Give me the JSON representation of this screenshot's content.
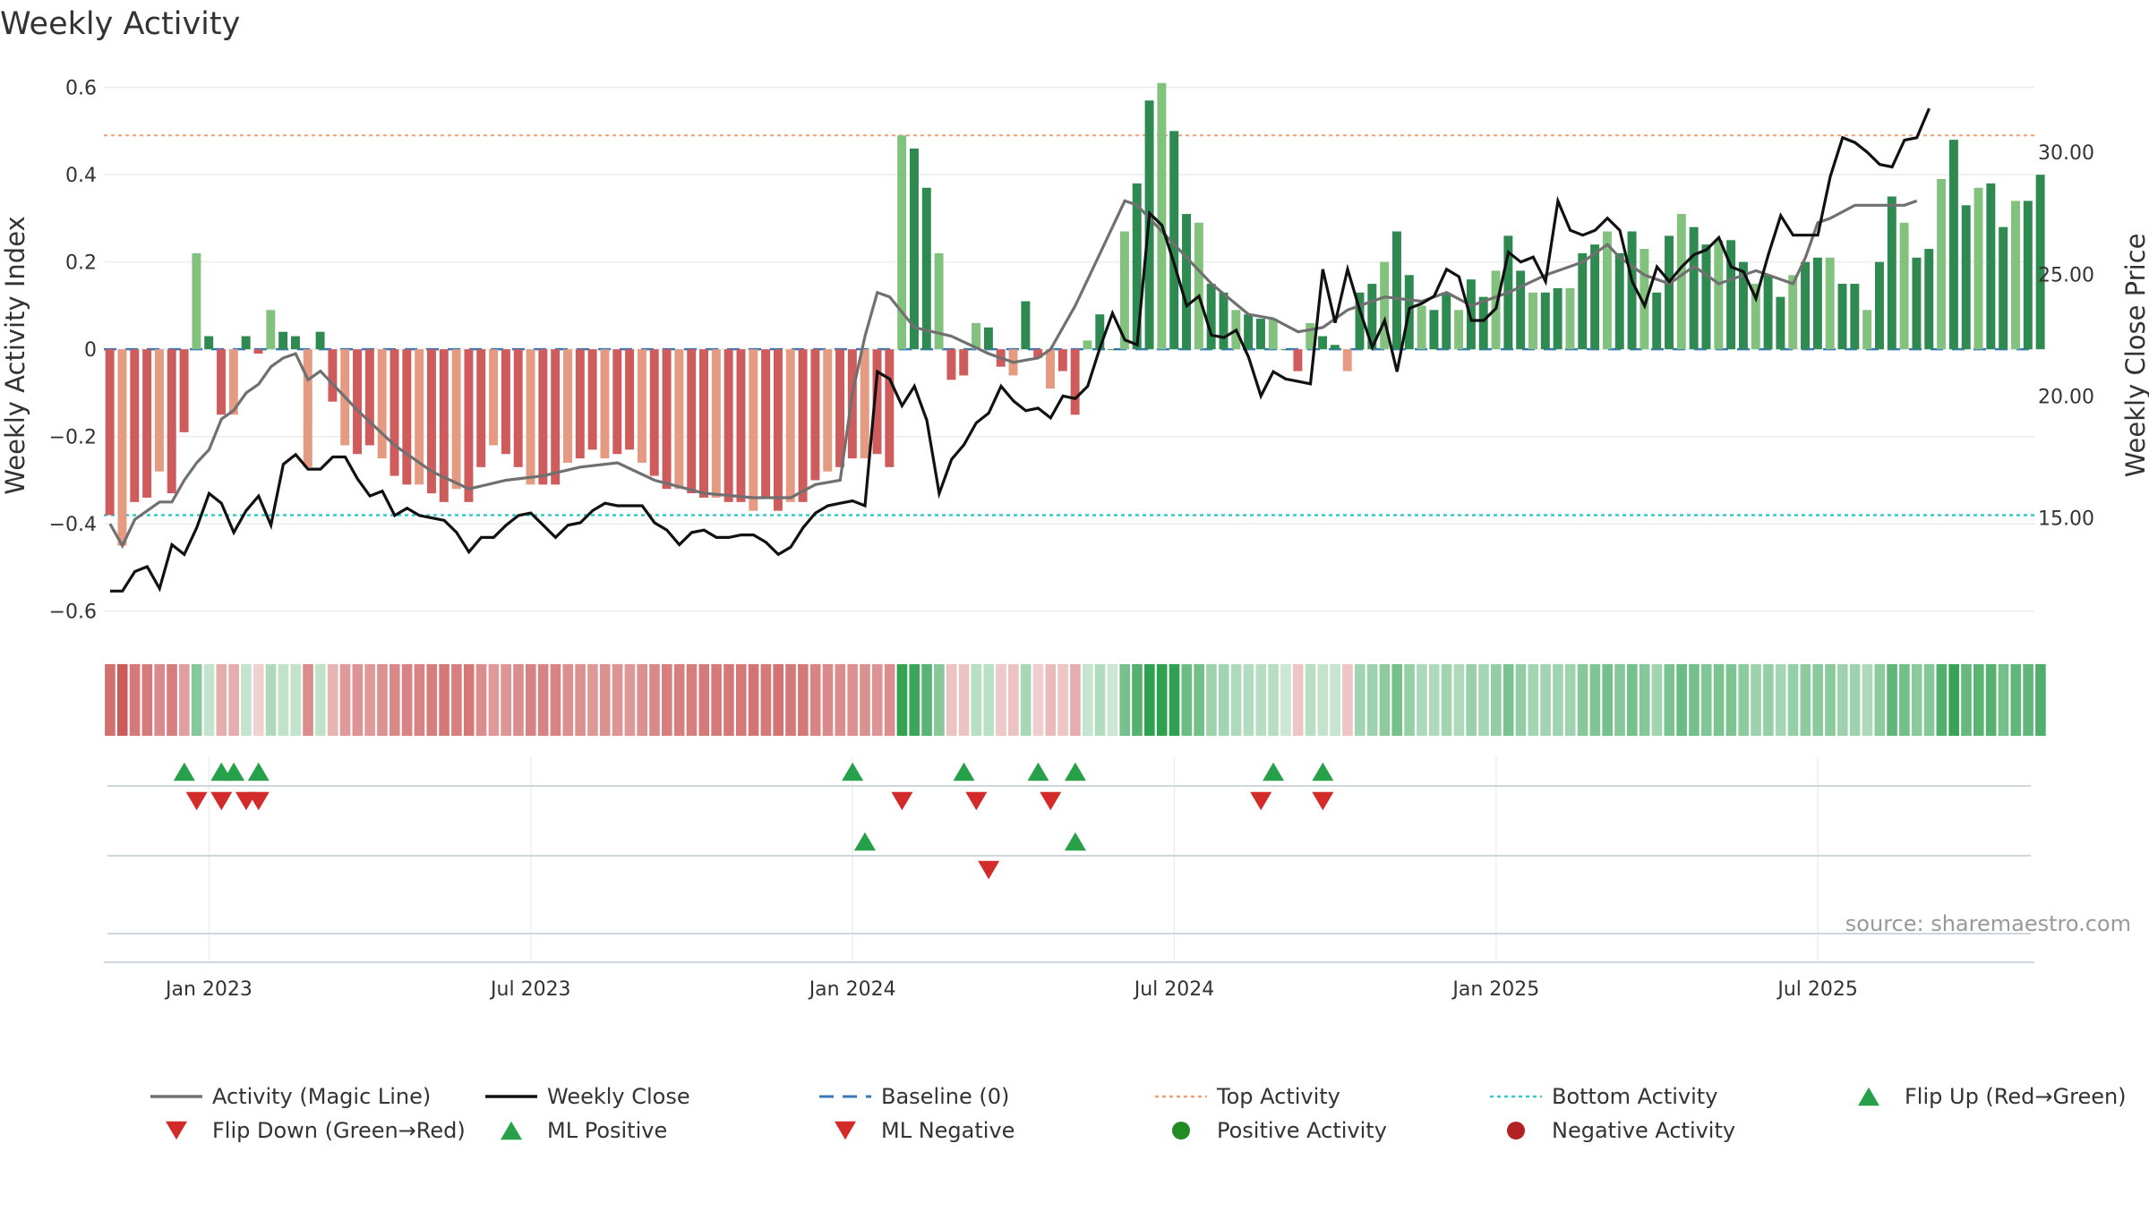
{
  "chart_data": {
    "type": "bar",
    "title": "Weekly Activity",
    "ylabel_left": "Weekly Activity Index",
    "ylabel_right": "Weekly Close Price",
    "source": "source: sharemaestro.com",
    "left_axis": {
      "ylim": [
        -0.66,
        0.63
      ],
      "ticks": [
        -0.6,
        -0.4,
        -0.2,
        0,
        0.2,
        0.4,
        0.6
      ],
      "tick_labels": [
        "−0.6",
        "−0.4",
        "−0.2",
        "0",
        "0.2",
        "0.4",
        "0.6"
      ]
    },
    "right_axis": {
      "ylim": [
        10.1,
        33.2
      ],
      "ticks": [
        15,
        20,
        25,
        30
      ],
      "tick_labels": [
        "15.00",
        "20.00",
        "25.00",
        "30.00"
      ]
    },
    "x_axis": {
      "start_week": -8,
      "end_week": 148,
      "ticks": [
        {
          "label": "Jan 2023",
          "week": 0
        },
        {
          "label": "Jul 2023",
          "week": 26
        },
        {
          "label": "Jan 2024",
          "week": 52
        },
        {
          "label": "Jul 2024",
          "week": 78
        },
        {
          "label": "Jan 2025",
          "week": 104
        },
        {
          "label": "Jul 2025",
          "week": 130
        }
      ]
    },
    "reference_lines": {
      "baseline": 0,
      "top_activity": 0.49,
      "bottom_activity": -0.38
    },
    "series": [
      {
        "name": "Weekly Activity",
        "kind": "bar",
        "start_week": -8,
        "values": [
          -0.38,
          -0.45,
          -0.35,
          -0.34,
          -0.28,
          -0.33,
          -0.19,
          0.22,
          0.03,
          -0.15,
          -0.15,
          0.03,
          -0.01,
          0.09,
          0.04,
          0.03,
          -0.27,
          0.04,
          -0.12,
          -0.22,
          -0.24,
          -0.22,
          -0.25,
          -0.29,
          -0.31,
          -0.31,
          -0.33,
          -0.35,
          -0.32,
          -0.35,
          -0.27,
          -0.22,
          -0.24,
          -0.27,
          -0.31,
          -0.31,
          -0.31,
          -0.26,
          -0.25,
          -0.23,
          -0.25,
          -0.24,
          -0.23,
          -0.26,
          -0.29,
          -0.32,
          -0.32,
          -0.33,
          -0.34,
          -0.34,
          -0.35,
          -0.35,
          -0.37,
          -0.34,
          -0.37,
          -0.35,
          -0.35,
          -0.3,
          -0.28,
          -0.27,
          -0.25,
          -0.25,
          -0.24,
          -0.27,
          0.49,
          0.46,
          0.37,
          0.22,
          -0.07,
          -0.06,
          0.06,
          0.05,
          -0.04,
          -0.06,
          0.11,
          -0.02,
          -0.09,
          -0.05,
          -0.15,
          0.02,
          0.08,
          0.0,
          0.27,
          0.38,
          0.57,
          0.61,
          0.5,
          0.31,
          0.29,
          0.15,
          0.13,
          0.09,
          0.08,
          0.07,
          0.07,
          0.0,
          -0.05,
          0.06,
          0.03,
          0.01,
          -0.05,
          0.13,
          0.15,
          0.2,
          0.27,
          0.17,
          0.1,
          0.09,
          0.13,
          0.09,
          0.16,
          0.12,
          0.18,
          0.26,
          0.18,
          0.13,
          0.13,
          0.14,
          0.14,
          0.22,
          0.24,
          0.27,
          0.22,
          0.27,
          0.23,
          0.13,
          0.26,
          0.31,
          0.28,
          0.24,
          0.25,
          0.25,
          0.2,
          0.15,
          0.17,
          0.12,
          0.17,
          0.2,
          0.21,
          0.21,
          0.15,
          0.15,
          0.09,
          0.2,
          0.35,
          0.29,
          0.21,
          0.23,
          0.39,
          0.48,
          0.33,
          0.37,
          0.38,
          0.28,
          0.34,
          0.34,
          0.4
        ]
      },
      {
        "name": "Activity (Magic Line)",
        "kind": "line",
        "color": "#707070",
        "start_week": -8,
        "points": [
          [
            -8,
            -0.4
          ],
          [
            -7,
            -0.45
          ],
          [
            -6,
            -0.39
          ],
          [
            -5,
            -0.37
          ],
          [
            -4,
            -0.35
          ],
          [
            -3,
            -0.35
          ],
          [
            -2,
            -0.3
          ],
          [
            -1,
            -0.26
          ],
          [
            0,
            -0.23
          ],
          [
            1,
            -0.16
          ],
          [
            2,
            -0.14
          ],
          [
            3,
            -0.1
          ],
          [
            4,
            -0.08
          ],
          [
            5,
            -0.04
          ],
          [
            6,
            -0.02
          ],
          [
            7,
            -0.01
          ],
          [
            8,
            -0.07
          ],
          [
            9,
            -0.05
          ],
          [
            10,
            -0.08
          ],
          [
            12,
            -0.14
          ],
          [
            15,
            -0.22
          ],
          [
            18,
            -0.28
          ],
          [
            21,
            -0.32
          ],
          [
            24,
            -0.3
          ],
          [
            27,
            -0.29
          ],
          [
            30,
            -0.27
          ],
          [
            33,
            -0.26
          ],
          [
            36,
            -0.3
          ],
          [
            40,
            -0.33
          ],
          [
            44,
            -0.34
          ],
          [
            47,
            -0.34
          ],
          [
            49,
            -0.31
          ],
          [
            51,
            -0.3
          ],
          [
            52,
            -0.1
          ],
          [
            53,
            0.03
          ],
          [
            54,
            0.13
          ],
          [
            55,
            0.12
          ],
          [
            57,
            0.05
          ],
          [
            60,
            0.03
          ],
          [
            63,
            -0.01
          ],
          [
            65,
            -0.03
          ],
          [
            67,
            -0.02
          ],
          [
            68,
            0.0
          ],
          [
            70,
            0.1
          ],
          [
            72,
            0.22
          ],
          [
            74,
            0.34
          ],
          [
            75,
            0.33
          ],
          [
            78,
            0.24
          ],
          [
            81,
            0.15
          ],
          [
            84,
            0.08
          ],
          [
            86,
            0.07
          ],
          [
            88,
            0.04
          ],
          [
            90,
            0.05
          ],
          [
            92,
            0.09
          ],
          [
            95,
            0.12
          ],
          [
            98,
            0.11
          ],
          [
            100,
            0.13
          ],
          [
            102,
            0.1
          ],
          [
            105,
            0.13
          ],
          [
            108,
            0.17
          ],
          [
            111,
            0.2
          ],
          [
            113,
            0.24
          ],
          [
            114,
            0.21
          ],
          [
            116,
            0.17
          ],
          [
            118,
            0.15
          ],
          [
            120,
            0.19
          ],
          [
            122,
            0.15
          ],
          [
            125,
            0.18
          ],
          [
            128,
            0.15
          ],
          [
            129,
            0.21
          ],
          [
            130,
            0.29
          ],
          [
            131,
            0.3
          ],
          [
            133,
            0.33
          ],
          [
            135,
            0.33
          ],
          [
            137,
            0.33
          ],
          [
            138,
            0.34
          ]
        ]
      },
      {
        "name": "Weekly Close",
        "kind": "line",
        "color": "#111111",
        "axis": "right",
        "points": [
          [
            -8,
            12.0
          ],
          [
            -7,
            12.0
          ],
          [
            -6,
            12.8
          ],
          [
            -5,
            13.0
          ],
          [
            -4,
            12.1
          ],
          [
            -3,
            13.9
          ],
          [
            -2,
            13.5
          ],
          [
            -1,
            14.6
          ],
          [
            0,
            16.0
          ],
          [
            1,
            15.6
          ],
          [
            2,
            14.4
          ],
          [
            3,
            15.3
          ],
          [
            4,
            15.9
          ],
          [
            5,
            14.7
          ],
          [
            6,
            17.2
          ],
          [
            7,
            17.6
          ],
          [
            8,
            17.0
          ],
          [
            9,
            17.0
          ],
          [
            10,
            17.5
          ],
          [
            11,
            17.5
          ],
          [
            12,
            16.6
          ],
          [
            13,
            15.9
          ],
          [
            14,
            16.1
          ],
          [
            15,
            15.1
          ],
          [
            16,
            15.4
          ],
          [
            17,
            15.1
          ],
          [
            18,
            15.0
          ],
          [
            19,
            14.9
          ],
          [
            20,
            14.4
          ],
          [
            21,
            13.6
          ],
          [
            22,
            14.2
          ],
          [
            23,
            14.2
          ],
          [
            24,
            14.7
          ],
          [
            25,
            15.1
          ],
          [
            26,
            15.2
          ],
          [
            27,
            14.7
          ],
          [
            28,
            14.2
          ],
          [
            29,
            14.7
          ],
          [
            30,
            14.8
          ],
          [
            31,
            15.3
          ],
          [
            32,
            15.6
          ],
          [
            33,
            15.5
          ],
          [
            34,
            15.5
          ],
          [
            35,
            15.5
          ],
          [
            36,
            14.8
          ],
          [
            37,
            14.5
          ],
          [
            38,
            13.9
          ],
          [
            39,
            14.4
          ],
          [
            40,
            14.5
          ],
          [
            41,
            14.2
          ],
          [
            42,
            14.2
          ],
          [
            43,
            14.3
          ],
          [
            44,
            14.3
          ],
          [
            45,
            14.0
          ],
          [
            46,
            13.5
          ],
          [
            47,
            13.8
          ],
          [
            48,
            14.6
          ],
          [
            49,
            15.2
          ],
          [
            50,
            15.5
          ],
          [
            51,
            15.6
          ],
          [
            52,
            15.7
          ],
          [
            53,
            15.5
          ],
          [
            54,
            21.0
          ],
          [
            55,
            20.7
          ],
          [
            56,
            19.6
          ],
          [
            57,
            20.4
          ],
          [
            58,
            19.0
          ],
          [
            59,
            16.0
          ],
          [
            60,
            17.4
          ],
          [
            61,
            18.0
          ],
          [
            62,
            18.9
          ],
          [
            63,
            19.3
          ],
          [
            64,
            20.4
          ],
          [
            65,
            19.8
          ],
          [
            66,
            19.4
          ],
          [
            67,
            19.5
          ],
          [
            68,
            19.1
          ],
          [
            69,
            20.0
          ],
          [
            70,
            19.9
          ],
          [
            71,
            20.4
          ],
          [
            72,
            22.0
          ],
          [
            73,
            23.4
          ],
          [
            74,
            22.3
          ],
          [
            75,
            22.1
          ],
          [
            76,
            27.5
          ],
          [
            77,
            27.0
          ],
          [
            78,
            25.4
          ],
          [
            79,
            23.7
          ],
          [
            80,
            24.1
          ],
          [
            81,
            22.5
          ],
          [
            82,
            22.4
          ],
          [
            83,
            22.7
          ],
          [
            84,
            21.6
          ],
          [
            85,
            20.0
          ],
          [
            86,
            21.0
          ],
          [
            87,
            20.7
          ],
          [
            88,
            20.6
          ],
          [
            89,
            20.5
          ],
          [
            90,
            25.2
          ],
          [
            91,
            23.0
          ],
          [
            92,
            25.2
          ],
          [
            93,
            23.5
          ],
          [
            94,
            22.0
          ],
          [
            95,
            23.1
          ],
          [
            96,
            21.0
          ],
          [
            97,
            23.6
          ],
          [
            98,
            23.8
          ],
          [
            99,
            24.1
          ],
          [
            100,
            25.2
          ],
          [
            101,
            24.9
          ],
          [
            102,
            23.1
          ],
          [
            103,
            23.1
          ],
          [
            104,
            23.6
          ],
          [
            105,
            25.9
          ],
          [
            106,
            25.5
          ],
          [
            107,
            25.7
          ],
          [
            108,
            24.7
          ],
          [
            109,
            28.0
          ],
          [
            110,
            26.8
          ],
          [
            111,
            26.6
          ],
          [
            112,
            26.8
          ],
          [
            113,
            27.3
          ],
          [
            114,
            26.8
          ],
          [
            115,
            24.7
          ],
          [
            116,
            23.7
          ],
          [
            117,
            25.3
          ],
          [
            118,
            24.7
          ],
          [
            119,
            25.3
          ],
          [
            120,
            25.8
          ],
          [
            121,
            26.0
          ],
          [
            122,
            26.5
          ],
          [
            123,
            25.3
          ],
          [
            124,
            25.1
          ],
          [
            125,
            24.0
          ],
          [
            126,
            25.8
          ],
          [
            127,
            27.4
          ],
          [
            128,
            26.6
          ],
          [
            129,
            26.6
          ],
          [
            130,
            26.6
          ],
          [
            131,
            29.0
          ],
          [
            132,
            30.6
          ],
          [
            133,
            30.4
          ],
          [
            134,
            30.0
          ],
          [
            135,
            29.5
          ],
          [
            136,
            29.4
          ],
          [
            137,
            30.5
          ],
          [
            138,
            30.6
          ],
          [
            139,
            31.8
          ]
        ]
      }
    ],
    "heat_strip": {
      "label": "Weekly activity heat strip (one cell per week, coloured by activity)"
    },
    "markers": {
      "flip_up_weeks": [
        -2,
        1,
        2,
        4,
        52,
        61,
        67,
        70,
        86,
        90
      ],
      "flip_down_weeks": [
        -1,
        1,
        3,
        4,
        56,
        62,
        68,
        85,
        90
      ],
      "ml_positive_weeks": [
        53,
        70
      ],
      "ml_negative_weeks": [
        63
      ]
    },
    "legend": [
      {
        "label": "Activity (Magic Line)",
        "symbol": "line",
        "color": "#707070"
      },
      {
        "label": "Weekly Close",
        "symbol": "line",
        "color": "#111111"
      },
      {
        "label": "Baseline (0)",
        "symbol": "dash",
        "color": "#3778b8"
      },
      {
        "label": "Top Activity",
        "symbol": "dot",
        "color": "#f0a070"
      },
      {
        "label": "Bottom Activity",
        "symbol": "dot",
        "color": "#35c9c9"
      },
      {
        "label": "Flip Up (Red→Green)",
        "symbol": "tri-up",
        "color": "#27a04a"
      },
      {
        "label": "Flip Down (Green→Red)",
        "symbol": "tri-down",
        "color": "#d32a2a"
      },
      {
        "label": "ML Positive",
        "symbol": "tri-up",
        "color": "#27a04a"
      },
      {
        "label": "ML Negative",
        "symbol": "tri-down",
        "color": "#d32a2a"
      },
      {
        "label": "Positive Activity",
        "symbol": "circle",
        "color": "#228b22"
      },
      {
        "label": "Negative Activity",
        "symbol": "circle",
        "color": "#b22222"
      }
    ]
  }
}
